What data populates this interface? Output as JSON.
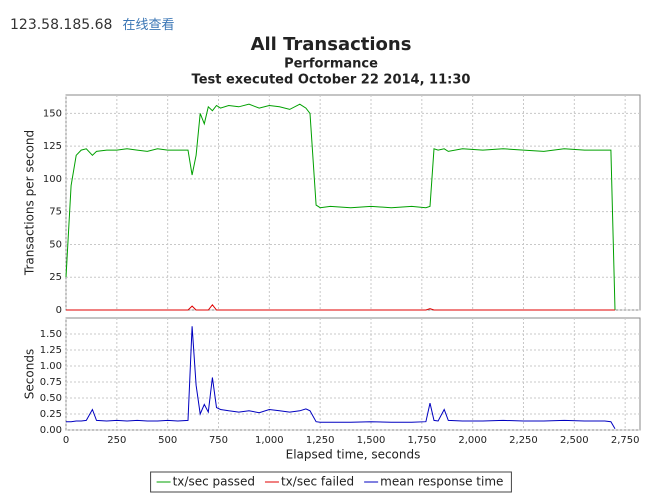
{
  "header": {
    "address": "123.58.185.68",
    "link": "在线查看"
  },
  "chart_data": [
    {
      "type": "line",
      "title": "All Transactions",
      "subtitle": "Performance",
      "caption": "Test executed October 22 2014, 11:30",
      "ylabel": "Transactions per second",
      "x": [
        0,
        25,
        50,
        75,
        100,
        130,
        150,
        200,
        250,
        300,
        350,
        400,
        450,
        500,
        550,
        600,
        620,
        640,
        660,
        680,
        700,
        720,
        740,
        760,
        800,
        850,
        900,
        950,
        1000,
        1050,
        1100,
        1150,
        1180,
        1200,
        1230,
        1250,
        1300,
        1400,
        1500,
        1600,
        1700,
        1770,
        1790,
        1810,
        1830,
        1860,
        1880,
        1950,
        2050,
        2150,
        2250,
        2350,
        2450,
        2550,
        2650,
        2680,
        2700
      ],
      "xlim": [
        0,
        2823
      ],
      "xticks": [
        0,
        250,
        500,
        750,
        1000,
        1250,
        1500,
        1750,
        2000,
        2250,
        2500,
        2750
      ],
      "ylim": [
        0,
        164
      ],
      "yticks": [
        0,
        25,
        50,
        75,
        100,
        125,
        150
      ],
      "grid": true,
      "series": [
        {
          "name": "tx/sec passed",
          "color": "#00a000",
          "values": [
            25,
            95,
            118,
            122,
            123,
            118,
            121,
            122,
            122,
            123,
            122,
            121,
            123,
            122,
            122,
            122,
            103,
            118,
            150,
            142,
            155,
            152,
            156,
            154,
            156,
            155,
            157,
            154,
            156,
            155,
            153,
            157,
            154,
            150,
            80,
            78,
            79,
            78,
            79,
            78,
            79,
            78,
            79,
            123,
            122,
            123,
            121,
            123,
            122,
            123,
            122,
            121,
            123,
            122,
            122,
            122,
            0
          ]
        },
        {
          "name": "tx/sec failed",
          "color": "#e00000",
          "values": [
            0,
            0,
            0,
            0,
            0,
            0,
            0,
            0,
            0,
            0,
            0,
            0,
            0,
            0,
            0,
            0,
            3,
            0,
            0,
            0,
            0,
            4,
            0,
            0,
            0,
            0,
            0,
            0,
            0,
            0,
            0,
            0,
            0,
            0,
            0,
            0,
            0,
            0,
            0,
            0,
            0,
            0,
            1,
            0,
            0,
            0,
            0,
            0,
            0,
            0,
            0,
            0,
            0,
            0,
            0,
            0,
            0
          ]
        }
      ]
    },
    {
      "type": "line",
      "xlabel": "Elapsed time, seconds",
      "ylabel": "Seconds",
      "x": [
        0,
        25,
        50,
        75,
        100,
        130,
        150,
        200,
        250,
        300,
        350,
        400,
        450,
        500,
        550,
        600,
        620,
        640,
        660,
        680,
        700,
        720,
        740,
        760,
        800,
        850,
        900,
        950,
        1000,
        1050,
        1100,
        1150,
        1180,
        1200,
        1230,
        1250,
        1300,
        1400,
        1500,
        1600,
        1700,
        1770,
        1790,
        1810,
        1830,
        1860,
        1880,
        1950,
        2050,
        2150,
        2250,
        2350,
        2450,
        2550,
        2650,
        2680,
        2700
      ],
      "xlim": [
        0,
        2823
      ],
      "xticks": [
        0,
        250,
        500,
        750,
        {
          "value": 1000,
          "label": "1,000"
        },
        {
          "value": 1250,
          "label": "1,250"
        },
        {
          "value": 1500,
          "label": "1,500"
        },
        {
          "value": 1750,
          "label": "1,750"
        },
        {
          "value": 2000,
          "label": "2,000"
        },
        {
          "value": 2250,
          "label": "2,250"
        },
        {
          "value": 2500,
          "label": "2,500"
        },
        {
          "value": 2750,
          "label": "2,750"
        }
      ],
      "ylim": [
        0,
        1.75
      ],
      "yticks": [
        {
          "value": 0,
          "label": "0.00"
        },
        {
          "value": 0.25,
          "label": "0.25"
        },
        {
          "value": 0.5,
          "label": "0.50"
        },
        {
          "value": 0.75,
          "label": "0.75"
        },
        {
          "value": 1,
          "label": "1.00"
        },
        {
          "value": 1.25,
          "label": "1.25"
        },
        {
          "value": 1.5,
          "label": "1.50"
        }
      ],
      "grid": true,
      "series": [
        {
          "name": "mean response time",
          "color": "#0000c0",
          "values": [
            0.13,
            0.13,
            0.14,
            0.14,
            0.15,
            0.32,
            0.15,
            0.14,
            0.15,
            0.14,
            0.15,
            0.14,
            0.14,
            0.15,
            0.14,
            0.15,
            1.62,
            0.7,
            0.25,
            0.4,
            0.28,
            0.82,
            0.35,
            0.32,
            0.3,
            0.28,
            0.3,
            0.27,
            0.32,
            0.3,
            0.28,
            0.3,
            0.33,
            0.3,
            0.13,
            0.12,
            0.12,
            0.12,
            0.13,
            0.12,
            0.12,
            0.13,
            0.42,
            0.15,
            0.14,
            0.32,
            0.15,
            0.14,
            0.14,
            0.15,
            0.14,
            0.14,
            0.15,
            0.14,
            0.14,
            0.13,
            0.02
          ]
        }
      ]
    }
  ],
  "legend_position": "bottom"
}
